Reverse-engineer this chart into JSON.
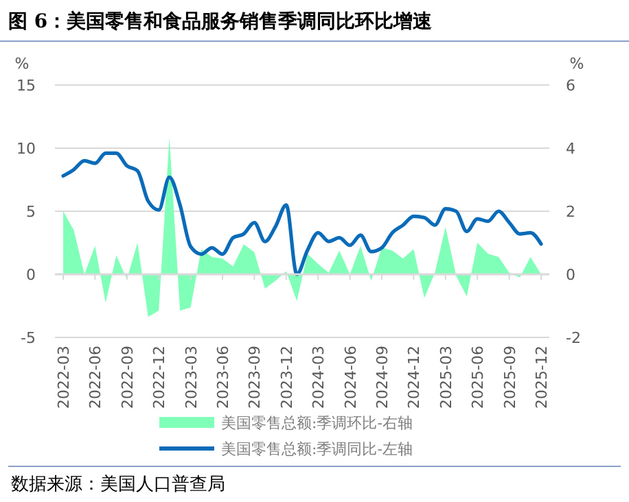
{
  "chart_data": {
    "type": "line",
    "title": "图 6：美国零售和食品服务销售季调同比环比增速",
    "ylabel": "%",
    "y2label": "%",
    "categories": [
      "2022-03",
      null,
      null,
      "2022-06",
      null,
      null,
      "2022-09",
      null,
      null,
      "2022-12",
      null,
      null,
      "2023-03",
      null,
      null,
      "2023-06",
      null,
      null,
      "2023-09",
      null,
      null,
      "2023-12",
      null,
      null,
      "2024-03",
      null,
      null,
      "2024-06",
      null,
      null,
      "2024-09",
      null,
      null,
      "2024-12",
      null,
      null,
      "2025-03",
      null,
      null,
      "2025-06",
      null,
      null,
      "2025-09",
      null,
      null,
      "2025-12"
    ],
    "series": [
      {
        "name": "美国零售总额:季调环比-右轴",
        "type": "area",
        "axis": "y2",
        "color": "#80ffb8",
        "values": [
          2.0,
          1.4,
          0,
          0.9,
          -0.9,
          0.6,
          -0.15,
          1.0,
          -1.35,
          -1.15,
          4.35,
          -1.15,
          -1.05,
          0.8,
          0.55,
          0.5,
          0.25,
          0.95,
          0.7,
          -0.45,
          -0.2,
          0.1,
          -0.85,
          0.65,
          0.33,
          0.05,
          0.75,
          0,
          0.9,
          -0.2,
          0.85,
          0.75,
          0.5,
          0.8,
          -0.75,
          0.05,
          1.5,
          -0.05,
          -0.7,
          1.0,
          0.65,
          0.55,
          0.05,
          -0.1,
          0.55,
          0
        ]
      },
      {
        "name": "美国零售总额:季调同比-左轴",
        "color": "#0a6bb8",
        "values": [
          7.8,
          8.3,
          9.0,
          8.8,
          9.6,
          9.6,
          8.6,
          8.2,
          5.8,
          5.1,
          7.7,
          5.5,
          2.2,
          1.6,
          2.1,
          1.6,
          2.9,
          3.2,
          4.1,
          2.6,
          3.8,
          5.5,
          0.0,
          1.9,
          3.3,
          2.6,
          2.9,
          2.3,
          3.1,
          1.8,
          2.1,
          3.3,
          3.9,
          4.6,
          4.5,
          3.9,
          5.2,
          5.0,
          3.4,
          4.4,
          4.2,
          5.0,
          4.1,
          3.2,
          3.3,
          2.4
        ]
      }
    ],
    "ylim": [
      -5,
      15
    ],
    "yticks": [
      -5,
      0,
      5,
      10,
      15
    ],
    "y2lim": [
      -2,
      6
    ],
    "y2ticks": [
      -2,
      0,
      2,
      4,
      6
    ],
    "grid": "y",
    "legend": "bottom",
    "marker": "none",
    "line_style": "solid",
    "annotations": [
      "数据来源：美国人口普查局"
    ]
  }
}
